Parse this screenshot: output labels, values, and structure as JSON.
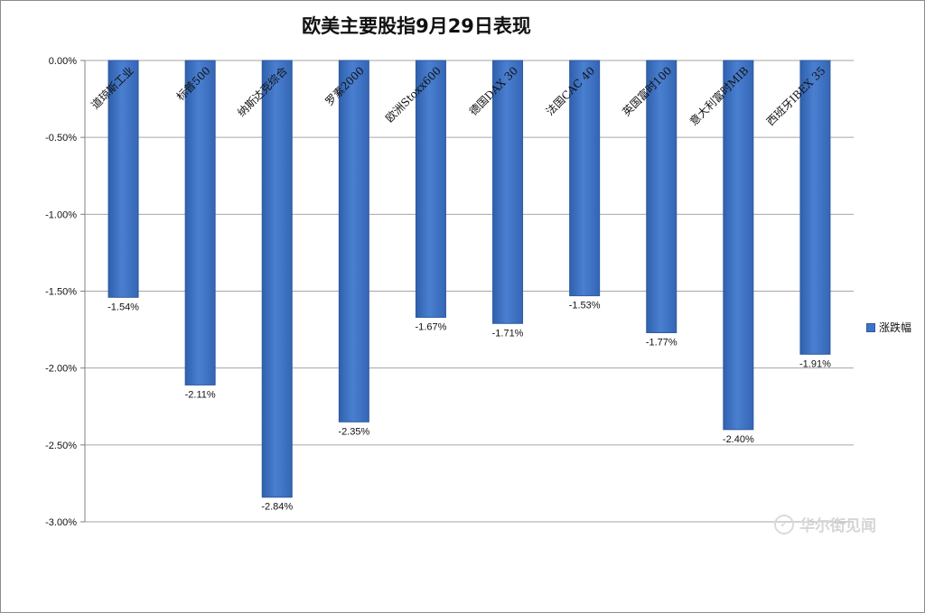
{
  "chart_data": {
    "type": "bar",
    "title": "欧美主要股指9月29日表现",
    "categories": [
      "道琼斯工业",
      "标普500",
      "纳斯达克综合",
      "罗素2000",
      "欧洲Stoxx600",
      "德国DAX 30",
      "法国CAC 40",
      "英国富时100",
      "意大利富时MIB",
      "西班牙IBEX 35"
    ],
    "series": [
      {
        "name": "涨跌幅",
        "values": [
          -1.54,
          -2.11,
          -2.84,
          -2.35,
          -1.67,
          -1.71,
          -1.53,
          -1.77,
          -2.4,
          -1.91
        ],
        "labels": [
          "-1.54%",
          "-2.11%",
          "-2.84%",
          "-2.35%",
          "-1.67%",
          "-1.71%",
          "-1.53%",
          "-1.77%",
          "-2.40%",
          "-1.91%"
        ]
      }
    ],
    "yticks": [
      0,
      -0.5,
      -1.0,
      -1.5,
      -2.0,
      -2.5,
      -3.0
    ],
    "ytick_labels": [
      "0.00%",
      "-0.50%",
      "-1.00%",
      "-1.50%",
      "-2.00%",
      "-2.50%",
      "-3.00%"
    ],
    "ylim": [
      -3.0,
      0
    ],
    "xlabel": "",
    "ylabel": "",
    "grid": true,
    "legend_position": "right",
    "colors": {
      "bar": "#3f73c5",
      "bar_dark": "#2d5a9e",
      "bar_light": "#6b96d9",
      "grid": "#a6a6a6"
    }
  },
  "watermark": {
    "text": "华尔街见闻",
    "icon": "wallstreetcn-logo-icon"
  }
}
